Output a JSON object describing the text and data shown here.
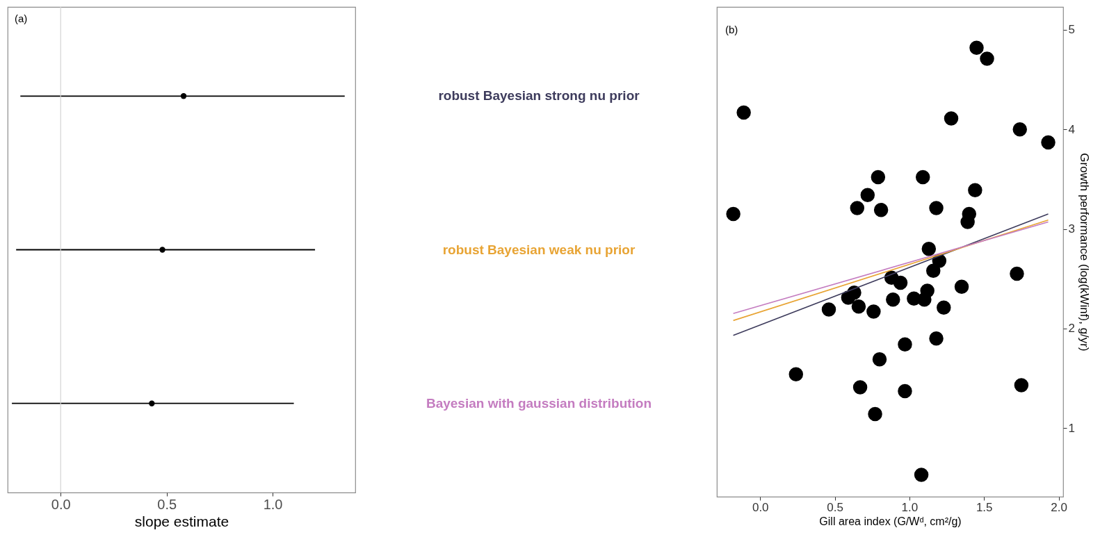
{
  "chart_data": [
    {
      "type": "scatter",
      "orientation": "horizontal",
      "annotations": [
        "(a)"
      ],
      "xlabel": "slope estimate",
      "categories": [
        "robust Bayesian strong nu prior",
        "robust Bayesian weak nu prior",
        "Bayesian with gaussian distribution"
      ],
      "values": [
        0.58,
        0.48,
        0.43
      ],
      "errors": [
        [
          -0.19,
          1.34
        ],
        [
          -0.21,
          1.2
        ],
        [
          -0.23,
          1.1
        ]
      ],
      "colors": [
        "#000000",
        "#000000",
        "#000000"
      ],
      "xlim": [
        -0.25,
        1.39
      ],
      "xticks": [
        {
          "value": 0,
          "label": "0.0"
        },
        {
          "value": 0.5,
          "label": "0.5"
        },
        {
          "value": 1,
          "label": "1.0"
        }
      ],
      "ref_lines": [
        {
          "axis": "x",
          "value": 0,
          "color": "#d3d3d3"
        }
      ],
      "grid": false,
      "marker": "circle"
    },
    {
      "type": "scatter",
      "annotations": [
        "(b)"
      ],
      "xlabel": "Gill area index (G/Wᵈ, cm²/g)",
      "ylabel": "Growth performance (log(kWinf), g/yr)",
      "xlim": [
        -0.29,
        2.03
      ],
      "ylim": [
        0.31,
        5.23
      ],
      "xticks": [
        {
          "value": 0,
          "label": "0.0"
        },
        {
          "value": 0.5,
          "label": "0.5"
        },
        {
          "value": 1,
          "label": "1.0"
        },
        {
          "value": 1.5,
          "label": "1.5"
        },
        {
          "value": 2,
          "label": "2.0"
        }
      ],
      "yticks": [
        1,
        2,
        3,
        4,
        5
      ],
      "grid": false,
      "series": [
        {
          "color": "#000000",
          "marker": "circle",
          "x": [
            1.45,
            1.52,
            -0.11,
            1.28,
            1.74,
            1.93,
            0.79,
            1.09,
            0.72,
            1.44,
            0.65,
            0.81,
            1.18,
            -0.18,
            1.4,
            1.39,
            1.13,
            1.2,
            1.16,
            1.72,
            0.88,
            0.94,
            0.63,
            0.59,
            1.12,
            1.35,
            0.89,
            1.03,
            1.1,
            0.46,
            0.66,
            0.76,
            1.23,
            1.18,
            0.97,
            0.8,
            0.24,
            1.75,
            0.67,
            0.97,
            0.77,
            1.08
          ],
          "values": [
            4.82,
            4.71,
            4.17,
            4.11,
            4.0,
            3.87,
            3.52,
            3.52,
            3.34,
            3.39,
            3.21,
            3.19,
            3.21,
            3.15,
            3.15,
            3.07,
            2.8,
            2.68,
            2.58,
            2.55,
            2.51,
            2.46,
            2.36,
            2.31,
            2.38,
            2.42,
            2.29,
            2.3,
            2.29,
            2.19,
            2.22,
            2.17,
            2.21,
            1.9,
            1.84,
            1.69,
            1.54,
            1.43,
            1.41,
            1.37,
            1.14,
            0.53
          ]
        },
        {
          "type": "line",
          "color": "#3d3b5c",
          "x": [
            -0.18,
            1.93
          ],
          "values": [
            1.93,
            3.15
          ]
        },
        {
          "type": "line",
          "color": "#e8a434",
          "x": [
            -0.18,
            1.93
          ],
          "values": [
            2.08,
            3.09
          ]
        },
        {
          "type": "line",
          "color": "#c47cc0",
          "x": [
            -0.18,
            1.93
          ],
          "values": [
            2.15,
            3.07
          ]
        }
      ]
    }
  ]
}
